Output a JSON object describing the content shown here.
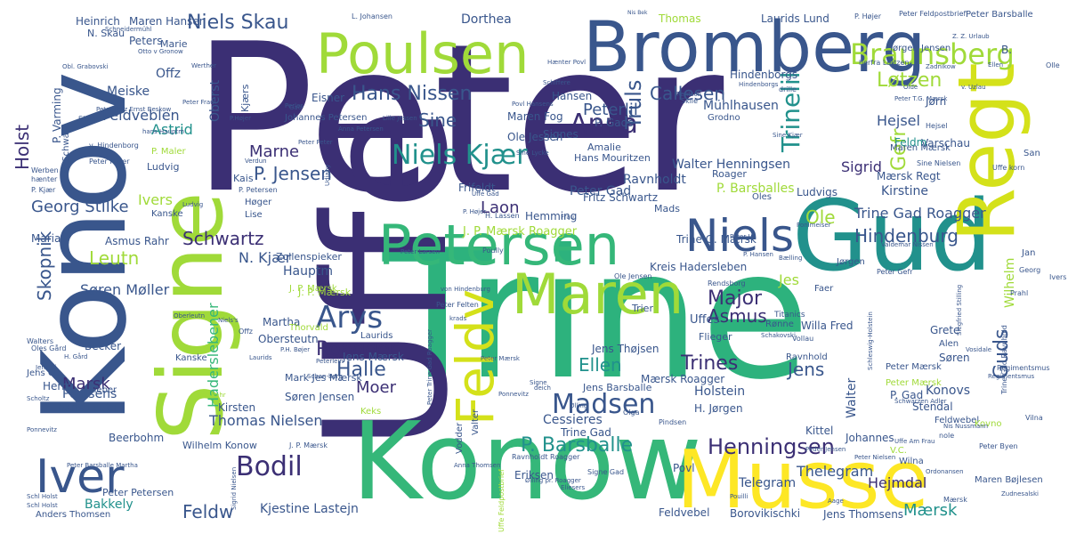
{
  "palette": {
    "c1": "#3b2f74",
    "c2": "#2e6f8e",
    "c3": "#39568c",
    "c4": "#21918c",
    "c5": "#35b779",
    "c6": "#a0da39",
    "c7": "#d4e11a",
    "c8": "#fde725",
    "c9": "#2db27d",
    "c10": "#46327e"
  },
  "words": [
    {
      "text": "Peter",
      "color": "c1"
    },
    {
      "text": "Trine",
      "color": "c9"
    },
    {
      "text": "Uffe",
      "color": "c1"
    },
    {
      "text": "Konow",
      "color": "c5"
    },
    {
      "text": "Konov",
      "color": "c3"
    },
    {
      "text": "Signe",
      "color": "c6"
    },
    {
      "text": "Gud",
      "color": "c4"
    },
    {
      "text": "Bromberg",
      "color": "c3"
    },
    {
      "text": "Regt",
      "color": "c7"
    },
    {
      "text": "Musse",
      "color": "c8"
    },
    {
      "text": "Poulsen",
      "color": "c6"
    },
    {
      "text": "Petersen",
      "color": "c5"
    },
    {
      "text": "Maren",
      "color": "c6"
    },
    {
      "text": "Niels",
      "color": "c3"
    },
    {
      "text": "Feldv",
      "color": "c7"
    },
    {
      "text": "Iver",
      "color": "c3"
    },
    {
      "text": "Braunsberg",
      "color": "c6"
    },
    {
      "text": "Niels Kjær",
      "color": "c4"
    },
    {
      "text": "Madsen",
      "color": "c3"
    },
    {
      "text": "Anna",
      "color": "c1"
    },
    {
      "text": "Arys",
      "color": "c3"
    },
    {
      "text": "Bodil",
      "color": "c1"
    },
    {
      "text": "Henningsen",
      "color": "c1"
    },
    {
      "text": "Niels Skau",
      "color": "c3"
    },
    {
      "text": "Hans Nissen",
      "color": "c3"
    },
    {
      "text": "Truls",
      "color": "c3"
    },
    {
      "text": "Trinelil",
      "color": "c4"
    },
    {
      "text": "Gefr",
      "color": "c6"
    },
    {
      "text": "Løtzen",
      "color": "c6"
    },
    {
      "text": "Callesen",
      "color": "c3"
    },
    {
      "text": "Peterlil",
      "color": "c3"
    },
    {
      "text": "Hindenburg",
      "color": "c3"
    },
    {
      "text": "Major",
      "color": "c1"
    },
    {
      "text": "Ellen",
      "color": "c4"
    },
    {
      "text": "Roagger",
      "color": "c1"
    },
    {
      "text": "Halle",
      "color": "c3"
    },
    {
      "text": "Schwartz",
      "color": "c1"
    },
    {
      "text": "Leutn",
      "color": "c6"
    },
    {
      "text": "Skopnik",
      "color": "c3"
    },
    {
      "text": "Haderslebener",
      "color": "c5"
    },
    {
      "text": "Asmus",
      "color": "c1"
    },
    {
      "text": "Trines",
      "color": "c1"
    },
    {
      "text": "Guds",
      "color": "c3"
    },
    {
      "text": "P. Barsballe",
      "color": "c4"
    },
    {
      "text": "Holst",
      "color": "c1"
    },
    {
      "text": "Feldw",
      "color": "c3"
    },
    {
      "text": "Jens",
      "color": "c3"
    },
    {
      "text": "Ole",
      "color": "c6"
    },
    {
      "text": "P. Jensen",
      "color": "c3"
    },
    {
      "text": "Sine",
      "color": "c3"
    },
    {
      "text": "Georg Stilke",
      "color": "c3"
    },
    {
      "text": "Laon",
      "color": "c1"
    },
    {
      "text": "Marne",
      "color": "c1"
    },
    {
      "text": "Moer",
      "color": "c1"
    },
    {
      "text": "Mærsk",
      "color": "c4"
    },
    {
      "text": "Marsk",
      "color": "c1"
    },
    {
      "text": "Thomas Nielsen",
      "color": "c3"
    },
    {
      "text": "Søren Møller",
      "color": "c3"
    },
    {
      "text": "Hejmdal",
      "color": "c1"
    },
    {
      "text": "Trine Gad Roagger",
      "color": "c3"
    },
    {
      "text": "Walter Henningsen",
      "color": "c3"
    },
    {
      "text": "Kirstine",
      "color": "c3"
    },
    {
      "text": "Wilhelm",
      "color": "c6"
    },
    {
      "text": "Hauptm",
      "color": "c3"
    },
    {
      "text": "Feldveblen",
      "color": "c3"
    },
    {
      "text": "Astrid",
      "color": "c4"
    },
    {
      "text": "Meiske",
      "color": "c3"
    },
    {
      "text": "Offz",
      "color": "c3"
    },
    {
      "text": "Heinrich",
      "color": "c3"
    },
    {
      "text": "Maren Hansen",
      "color": "c3"
    },
    {
      "text": "Dorthea",
      "color": "c3"
    },
    {
      "text": "Thomas",
      "color": "c6"
    },
    {
      "text": "Laurids Lund",
      "color": "c3"
    },
    {
      "text": "Jørgen Jensen",
      "color": "c3"
    },
    {
      "text": "Peter Barsballe",
      "color": "c3"
    },
    {
      "text": "Peter Feldpostbrief",
      "color": "c3"
    },
    {
      "text": "Hansen",
      "color": "c3"
    },
    {
      "text": "Hindenborgs",
      "color": "c3"
    },
    {
      "text": "Mühlhausen",
      "color": "c3"
    },
    {
      "text": "Signes",
      "color": "c3"
    },
    {
      "text": "Maren Fog",
      "color": "c3"
    },
    {
      "text": "Ole Jessen",
      "color": "c3"
    },
    {
      "text": "P. Gads",
      "color": "c3"
    },
    {
      "text": "Hejsel",
      "color": "c3"
    },
    {
      "text": "Varschau",
      "color": "c3"
    },
    {
      "text": "Jørn",
      "color": "c3"
    },
    {
      "text": "Feldm",
      "color": "c4"
    },
    {
      "text": "Maren Mærsk",
      "color": "c3"
    },
    {
      "text": "Sigrid",
      "color": "c1"
    },
    {
      "text": "Mærsk Regt",
      "color": "c3"
    },
    {
      "text": "Ludvigs",
      "color": "c3"
    },
    {
      "text": "Oles",
      "color": "c3"
    },
    {
      "text": "Peter Gad",
      "color": "c3"
    },
    {
      "text": "Ravnholdt",
      "color": "c3"
    },
    {
      "text": "P. Barsballes",
      "color": "c6"
    },
    {
      "text": "Roager",
      "color": "c3"
    },
    {
      "text": "Frifeldt",
      "color": "c3"
    },
    {
      "text": "Fritz Schwartz",
      "color": "c3"
    },
    {
      "text": "Trine G. Mærsk",
      "color": "c3"
    },
    {
      "text": "Hemming",
      "color": "c3"
    },
    {
      "text": "Mads",
      "color": "c3"
    },
    {
      "text": "J. P. Mærsk Roagger",
      "color": "c6"
    },
    {
      "text": "Kreis Hadersleben",
      "color": "c3"
    },
    {
      "text": "Jes",
      "color": "c6"
    },
    {
      "text": "Uffes",
      "color": "c3"
    },
    {
      "text": "Flieger",
      "color": "c3"
    },
    {
      "text": "Trier",
      "color": "c3"
    },
    {
      "text": "Willa Fred",
      "color": "c3"
    },
    {
      "text": "Titanics",
      "color": "c3"
    },
    {
      "text": "Grete",
      "color": "c3"
    },
    {
      "text": "Alen",
      "color": "c3"
    },
    {
      "text": "Søren",
      "color": "c3"
    },
    {
      "text": "Konovs",
      "color": "c3"
    },
    {
      "text": "Stendal",
      "color": "c3"
    },
    {
      "text": "Feldwebel",
      "color": "c3"
    },
    {
      "text": "Holstein",
      "color": "c3"
    },
    {
      "text": "H. Jørgen",
      "color": "c3"
    },
    {
      "text": "Walter",
      "color": "c3"
    },
    {
      "text": "P. Gad",
      "color": "c3"
    },
    {
      "text": "Peter Mærsk",
      "color": "c3"
    },
    {
      "text": "Mærsk Roagger",
      "color": "c3"
    },
    {
      "text": "Jens Barsballe",
      "color": "c3"
    },
    {
      "text": "Jens Thøjsen",
      "color": "c3"
    },
    {
      "text": "Cessieres",
      "color": "c3"
    },
    {
      "text": "Trine Gad",
      "color": "c3"
    },
    {
      "text": "Eriksen",
      "color": "c3"
    },
    {
      "text": "Povl",
      "color": "c3"
    },
    {
      "text": "Telegram",
      "color": "c3"
    },
    {
      "text": "Thelegram",
      "color": "c3"
    },
    {
      "text": "Kittel",
      "color": "c3"
    },
    {
      "text": "Johannes",
      "color": "c3"
    },
    {
      "text": "Wilna",
      "color": "c3"
    },
    {
      "text": "Maren Bøjlesen",
      "color": "c3"
    },
    {
      "text": "Jens Thomsens",
      "color": "c3"
    },
    {
      "text": "Borovikischki",
      "color": "c3"
    },
    {
      "text": "Feldvebel",
      "color": "c3"
    },
    {
      "text": "Kjestine Lastejn",
      "color": "c3"
    },
    {
      "text": "Bakkely",
      "color": "c4"
    },
    {
      "text": "Anders Thomsen",
      "color": "c3"
    },
    {
      "text": "Peter Petersen",
      "color": "c3"
    },
    {
      "text": "Wilhelm Konow",
      "color": "c3"
    },
    {
      "text": "Beerbohm",
      "color": "c3"
    },
    {
      "text": "Poulsens",
      "color": "c3"
    },
    {
      "text": "hans Leutn",
      "color": "c3"
    },
    {
      "text": "Herrn",
      "color": "c3"
    },
    {
      "text": "Lieber",
      "color": "c3"
    },
    {
      "text": "Becker",
      "color": "c3"
    },
    {
      "text": "Martha",
      "color": "c3"
    },
    {
      "text": "Obersteutn",
      "color": "c3"
    },
    {
      "text": "Laurids",
      "color": "c3"
    },
    {
      "text": "Kirsten",
      "color": "c3"
    },
    {
      "text": "Søren Jensen",
      "color": "c3"
    },
    {
      "text": "Mark Jes Mærsk",
      "color": "c3"
    },
    {
      "text": "Keks",
      "color": "c6"
    },
    {
      "text": "Ivers",
      "color": "c6"
    },
    {
      "text": "Kanske",
      "color": "c3"
    },
    {
      "text": "Ludvig",
      "color": "c3"
    },
    {
      "text": "Kais",
      "color": "c3"
    },
    {
      "text": "Maria",
      "color": "c3"
    },
    {
      "text": "Asmus Rahr",
      "color": "c3"
    },
    {
      "text": "N. Kjær",
      "color": "c3"
    },
    {
      "text": "Zollenspieker",
      "color": "c3"
    },
    {
      "text": "J. P. Mærsk",
      "color": "c6"
    },
    {
      "text": "Jens Mærsk",
      "color": "c3"
    },
    {
      "text": "Eisner",
      "color": "c3"
    },
    {
      "text": "Amalie",
      "color": "c3"
    },
    {
      "text": "Hans Mouritzen",
      "color": "c3"
    },
    {
      "text": "Grodno",
      "color": "c3"
    },
    {
      "text": "Oberst",
      "color": "c3"
    },
    {
      "text": "Kjærs",
      "color": "c3"
    },
    {
      "text": "Peters",
      "color": "c3"
    },
    {
      "text": "Marie",
      "color": "c3"
    },
    {
      "text": "P. Varming",
      "color": "c3"
    },
    {
      "text": "N. Skau",
      "color": "c3"
    },
    {
      "text": "L. Johansen",
      "color": "c3"
    },
    {
      "text": "P. Højer",
      "color": "c3"
    },
    {
      "text": "Olle",
      "color": "c3"
    },
    {
      "text": "B.",
      "color": "c3"
    },
    {
      "text": "San",
      "color": "c3"
    },
    {
      "text": "Uffe korn",
      "color": "c3"
    },
    {
      "text": "Jan",
      "color": "c3"
    },
    {
      "text": "Prahl",
      "color": "c3"
    },
    {
      "text": "Regimentsmus",
      "color": "c3"
    },
    {
      "text": "Vilna",
      "color": "c3"
    },
    {
      "text": "Oles Gård",
      "color": "c3"
    },
    {
      "text": "Walters",
      "color": "c3"
    },
    {
      "text": "Scholtz",
      "color": "c3"
    },
    {
      "text": "Ponnevitz",
      "color": "c3"
    },
    {
      "text": "Aage",
      "color": "c3"
    },
    {
      "text": "Schl Holst",
      "color": "c3"
    },
    {
      "text": "Jens Cl.",
      "color": "c3"
    },
    {
      "text": "Kanske",
      "color": "c3"
    },
    {
      "text": "Ravnholdt Roagger",
      "color": "c3"
    },
    {
      "text": "Pindsen",
      "color": "c3"
    },
    {
      "text": "Vollau",
      "color": "c3"
    },
    {
      "text": "Ravnhold",
      "color": "c3"
    },
    {
      "text": "Rønne",
      "color": "c3"
    },
    {
      "text": "Faer",
      "color": "c3"
    },
    {
      "text": "Jørgen",
      "color": "c3"
    },
    {
      "text": "Lise",
      "color": "c3"
    },
    {
      "text": "Høger",
      "color": "c3"
    },
    {
      "text": "P. Petersen",
      "color": "c3"
    },
    {
      "text": "Ivers",
      "color": "c3"
    },
    {
      "text": "Georg",
      "color": "c3"
    },
    {
      "text": "Uffe Feldpostbrief",
      "color": "c6"
    },
    {
      "text": "Signe Gad",
      "color": "c3"
    },
    {
      "text": "Nis Bek",
      "color": "c3"
    },
    {
      "text": "Peter Byen",
      "color": "c3"
    },
    {
      "text": "Zudnesalski",
      "color": "c3"
    },
    {
      "text": "Ordonansen",
      "color": "c3"
    },
    {
      "text": "V.C.",
      "color": "c6"
    },
    {
      "text": "nole",
      "color": "c3"
    },
    {
      "text": "Kovno",
      "color": "c6"
    },
    {
      "text": "Peter Mærsk",
      "color": "c6"
    },
    {
      "text": "Sine Nielsen",
      "color": "c3"
    },
    {
      "text": "Hejsel",
      "color": "c3"
    },
    {
      "text": "Olga",
      "color": "c3"
    },
    {
      "text": "Anna Thomsen",
      "color": "c3"
    },
    {
      "text": "Vodder",
      "color": "c3"
    },
    {
      "text": "Valter",
      "color": "c3"
    },
    {
      "text": "Rendsborg",
      "color": "c3"
    },
    {
      "text": "Ole Jensen",
      "color": "c3"
    },
    {
      "text": "Poully",
      "color": "c3"
    },
    {
      "text": "Peter Larsen",
      "color": "c3"
    },
    {
      "text": "Verdun",
      "color": "c3"
    },
    {
      "text": "Udjany",
      "color": "c3"
    },
    {
      "text": "v. Hindenborg",
      "color": "c3"
    },
    {
      "text": "Peter Maler",
      "color": "c3"
    },
    {
      "text": "Werben",
      "color": "c3"
    },
    {
      "text": "hænter",
      "color": "c3"
    },
    {
      "text": "P. Kjær",
      "color": "c3"
    },
    {
      "text": "Fritz Schwarz",
      "color": "c3"
    },
    {
      "text": "Sigurd",
      "color": "c3"
    },
    {
      "text": "Peter Fritz Ernst Beskow",
      "color": "c3"
    },
    {
      "text": "Peter Frau",
      "color": "c3"
    },
    {
      "text": "Obl. Grabovski",
      "color": "c3"
    },
    {
      "text": "Schneidermühl",
      "color": "c3"
    },
    {
      "text": "Otto v Gronow",
      "color": "c3"
    },
    {
      "text": "Werther",
      "color": "c3"
    },
    {
      "text": "hans Hauptm",
      "color": "c3"
    },
    {
      "text": "P.Højer",
      "color": "c3"
    },
    {
      "text": "Perles",
      "color": "c3"
    },
    {
      "text": "Johannes Petersen",
      "color": "c3"
    },
    {
      "text": "P. Maler",
      "color": "c6"
    },
    {
      "text": "Thorvald",
      "color": "c6"
    },
    {
      "text": "J. P. Mærsk",
      "color": "c3"
    },
    {
      "text": "J. P. Mærsk",
      "color": "c6"
    },
    {
      "text": "Peter Felten",
      "color": "c3"
    },
    {
      "text": "Oberleutn",
      "color": "c3"
    },
    {
      "text": "Niels's",
      "color": "c3"
    },
    {
      "text": "H. Gård",
      "color": "c3"
    },
    {
      "text": "Offz",
      "color": "c3"
    },
    {
      "text": "P.H. Bøjer",
      "color": "c3"
    },
    {
      "text": "Schan-berg",
      "color": "c3"
    },
    {
      "text": "Peterlein",
      "color": "c3"
    },
    {
      "text": "Sine Rahr",
      "color": "c6"
    },
    {
      "text": "Mærsk",
      "color": "c3"
    },
    {
      "text": "Ølling",
      "color": "c3"
    },
    {
      "text": "Regimentsmus",
      "color": "c3"
    },
    {
      "text": "Uffe Am Frau",
      "color": "c3"
    },
    {
      "text": "Peter Nielsen",
      "color": "c3"
    },
    {
      "text": "Schwarzen Adler",
      "color": "c3"
    },
    {
      "text": "Vosidale",
      "color": "c3"
    },
    {
      "text": "Nis Nussmann",
      "color": "c3"
    },
    {
      "text": "Peder Jensen",
      "color": "c3"
    },
    {
      "text": "Schleswig-Holstein",
      "color": "c3"
    },
    {
      "text": "Siegfried Stilling",
      "color": "c3"
    },
    {
      "text": "Trine Gad Ravnhold",
      "color": "c3"
    },
    {
      "text": "Valdemar Nissen",
      "color": "c3"
    },
    {
      "text": "Peter Gefr",
      "color": "c3"
    },
    {
      "text": "Ponimeiser",
      "color": "c3"
    },
    {
      "text": "Peter J.",
      "color": "c3"
    },
    {
      "text": "P. Hansen",
      "color": "c3"
    },
    {
      "text": "Bælling",
      "color": "c3"
    },
    {
      "text": "Schakovski",
      "color": "c3"
    },
    {
      "text": "Sine Kjær",
      "color": "c3"
    },
    {
      "text": "drille",
      "color": "c3"
    },
    {
      "text": "Skile",
      "color": "c3"
    },
    {
      "text": "Rentsch",
      "color": "c3"
    },
    {
      "text": "Povl Hansens",
      "color": "c3"
    },
    {
      "text": "Schiffere",
      "color": "c3"
    },
    {
      "text": "Hænter Povl",
      "color": "c3"
    },
    {
      "text": "Peter Peter",
      "color": "c3"
    },
    {
      "text": "Gad",
      "color": "c3"
    },
    {
      "text": "Ellen",
      "color": "c3"
    },
    {
      "text": "Zadnikow",
      "color": "c3"
    },
    {
      "text": "Olde",
      "color": "c3"
    },
    {
      "text": "v. Uzlau",
      "color": "c3"
    },
    {
      "text": "Peter T.G. Mærsk",
      "color": "c3"
    },
    {
      "text": "herfra Lætzen",
      "color": "c3"
    },
    {
      "text": "Z. Z. Urlaub",
      "color": "c3"
    },
    {
      "text": "Hindenborgs",
      "color": "c3"
    },
    {
      "text": "Lille Jessen",
      "color": "c3"
    },
    {
      "text": "Sine Lycke",
      "color": "c3"
    },
    {
      "text": "Anna Petersen",
      "color": "c3"
    },
    {
      "text": "Uffe Gad",
      "color": "c3"
    },
    {
      "text": "P. Højer",
      "color": "c3"
    },
    {
      "text": "Frau",
      "color": "c3"
    },
    {
      "text": "H. Lassen",
      "color": "c3"
    },
    {
      "text": "von Hindenburg",
      "color": "c3"
    },
    {
      "text": "Peter Trine Gad Roagger",
      "color": "c3"
    },
    {
      "text": "krads",
      "color": "c3"
    },
    {
      "text": "Peter Mærsk",
      "color": "c3"
    },
    {
      "text": "Ponnevitz",
      "color": "c3"
    },
    {
      "text": "Signe",
      "color": "c3"
    },
    {
      "text": "deich",
      "color": "c3"
    },
    {
      "text": "Ølling pr. Roagger",
      "color": "c3"
    },
    {
      "text": "Eliesers",
      "color": "c3"
    },
    {
      "text": "Pouilli",
      "color": "c3"
    },
    {
      "text": "Ludvig",
      "color": "c3"
    },
    {
      "text": "Peter Barsballe Martha",
      "color": "c3"
    },
    {
      "text": "Schl Holst",
      "color": "c3"
    },
    {
      "text": "Sigrid Nielsen",
      "color": "c3"
    },
    {
      "text": "Jens Ci.",
      "color": "c3"
    },
    {
      "text": "Laurids",
      "color": "c3"
    }
  ]
}
